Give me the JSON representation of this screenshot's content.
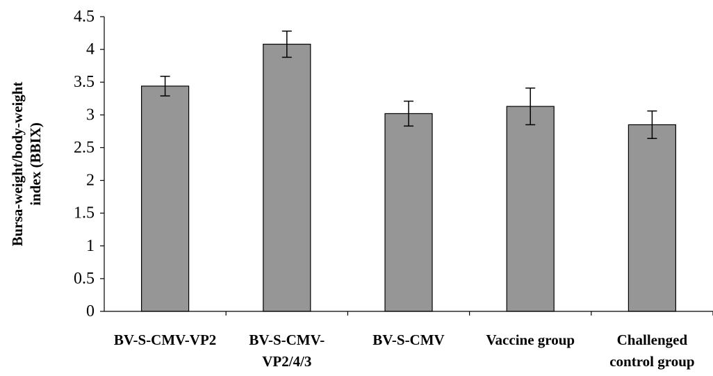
{
  "chart_data": {
    "type": "bar",
    "title": "",
    "xlabel": "",
    "ylabel": [
      "Bursa-weight/body-weight",
      "index (BBIX)"
    ],
    "ylim": [
      0,
      4.5
    ],
    "ytick_step": 0.5,
    "ytick_labels": [
      "0",
      "0.5",
      "1",
      "1.5",
      "2",
      "2.5",
      "3",
      "3.5",
      "4",
      "4.5"
    ],
    "categories": [
      [
        "BV-S-CMV-VP2"
      ],
      [
        "BV-S-CMV-",
        "VP2/4/3"
      ],
      [
        "BV-S-CMV"
      ],
      [
        "Vaccine group"
      ],
      [
        "Challenged",
        "control group"
      ]
    ],
    "values": [
      3.44,
      4.08,
      3.02,
      3.13,
      2.85
    ],
    "error": [
      0.15,
      0.2,
      0.19,
      0.28,
      0.21
    ],
    "bar_color": "#969696",
    "bar_stroke": "#000000",
    "grid": false,
    "legend": "none"
  }
}
